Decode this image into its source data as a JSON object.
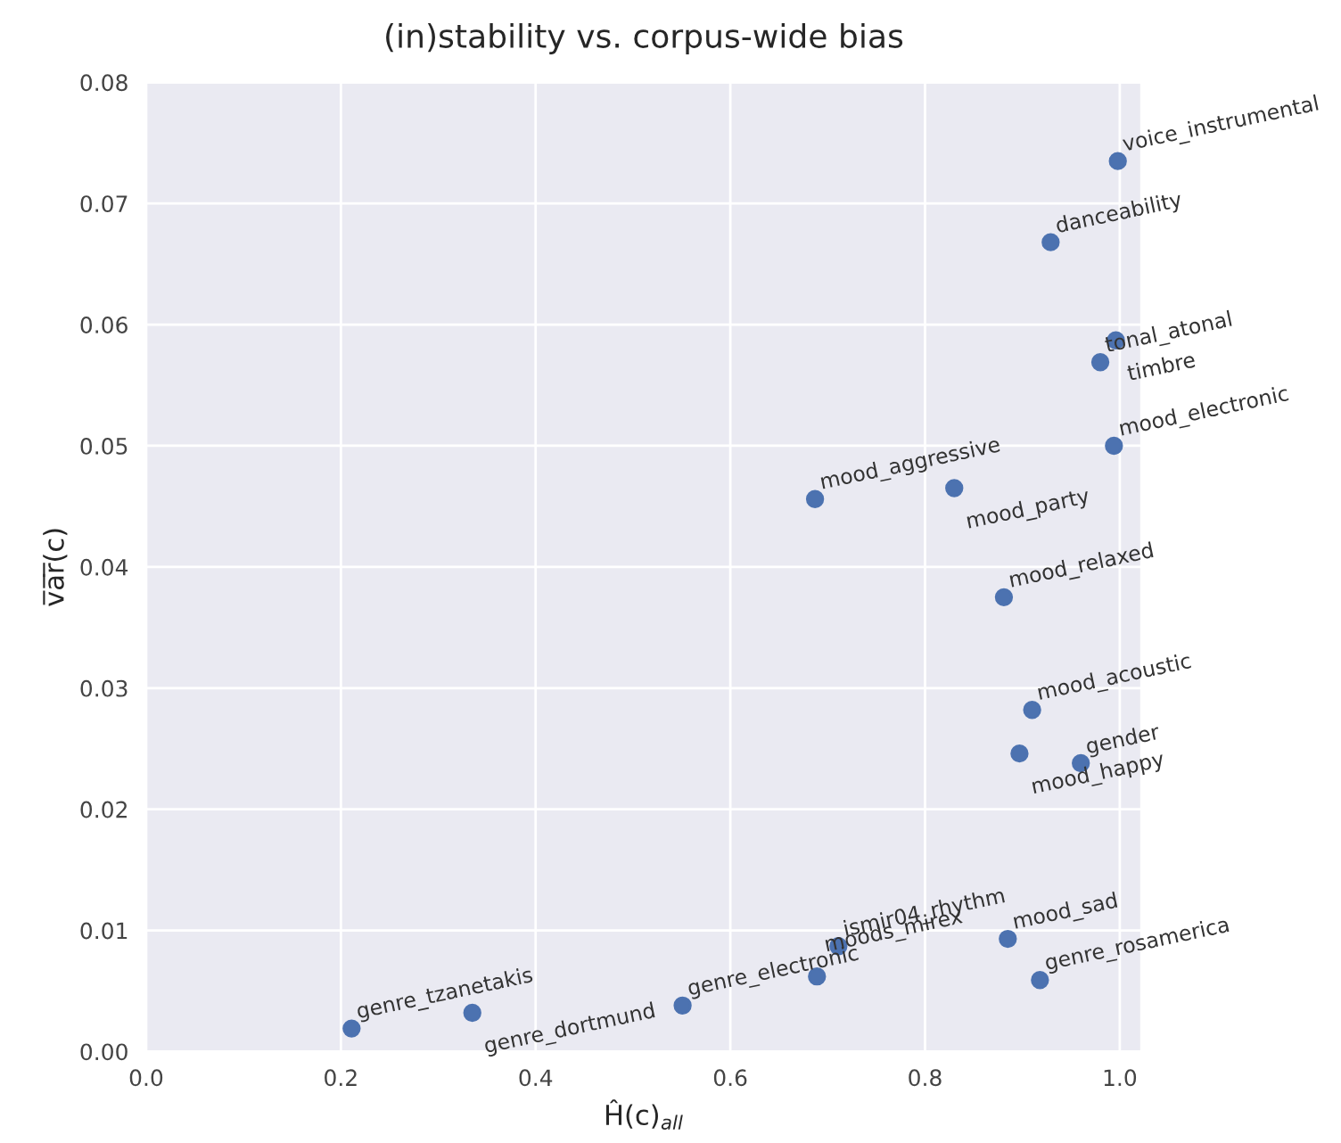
{
  "chart_data": {
    "type": "scatter",
    "title": "(in)stability vs. corpus-wide bias",
    "xlabel": "Ĥ(c)$_{all}$",
    "ylabel": "v̅a̅r̅(c)",
    "x": [
      0.211,
      0.335,
      0.551,
      0.711,
      0.689,
      0.885,
      0.918,
      0.96,
      0.897,
      0.91,
      0.881,
      0.687,
      0.83,
      0.994,
      0.98,
      0.996,
      0.929,
      0.998
    ],
    "series": [
      {
        "color": "#4c72b0",
        "values": [
          0.0019,
          0.0032,
          0.0038,
          0.0087,
          0.0062,
          0.0093,
          0.0059,
          0.0238,
          0.0246,
          0.0282,
          0.0375,
          0.0456,
          0.0465,
          0.05,
          0.0569,
          0.0587,
          0.0668,
          0.0735
        ]
      }
    ],
    "annotations": [
      {
        "text": "genre_tzanetakis",
        "x": 0.211,
        "y": 0.0019
      },
      {
        "text": "genre_dortmund",
        "x": 0.335,
        "y": 0.0032
      },
      {
        "text": "genre_electronic",
        "x": 0.551,
        "y": 0.0038
      },
      {
        "text": "ismir04_rhythm",
        "x": 0.711,
        "y": 0.0087
      },
      {
        "text": "moods_mirex",
        "x": 0.689,
        "y": 0.0062
      },
      {
        "text": "mood_sad",
        "x": 0.885,
        "y": 0.0093
      },
      {
        "text": "genre_rosamerica",
        "x": 0.918,
        "y": 0.0059
      },
      {
        "text": "gender",
        "x": 0.96,
        "y": 0.0238
      },
      {
        "text": "mood_happy",
        "x": 0.897,
        "y": 0.0246
      },
      {
        "text": "mood_acoustic",
        "x": 0.91,
        "y": 0.0282
      },
      {
        "text": "mood_relaxed",
        "x": 0.881,
        "y": 0.0375
      },
      {
        "text": "mood_aggressive",
        "x": 0.687,
        "y": 0.0456
      },
      {
        "text": "mood_party",
        "x": 0.83,
        "y": 0.0465
      },
      {
        "text": "mood_electronic",
        "x": 0.994,
        "y": 0.05
      },
      {
        "text": "tonal_atonal",
        "x": 0.98,
        "y": 0.0569
      },
      {
        "text": "timbre",
        "x": 0.996,
        "y": 0.0587
      },
      {
        "text": "danceability",
        "x": 0.929,
        "y": 0.0668
      },
      {
        "text": "voice_instrumental",
        "x": 0.998,
        "y": 0.0735
      }
    ],
    "xlim": [
      0,
      1.022
    ],
    "ylim": [
      0,
      0.08
    ],
    "xticks": [
      {
        "value": 0,
        "label": "0.0"
      },
      0.2,
      0.4,
      0.6,
      0.8,
      {
        "value": 1,
        "label": "1.0"
      }
    ],
    "yticks": [
      {
        "value": 0,
        "label": "0.00"
      },
      0.01,
      0.02,
      0.03,
      0.04,
      0.05,
      0.06,
      0.07,
      0.08
    ],
    "grid": true,
    "marker": "circle"
  }
}
